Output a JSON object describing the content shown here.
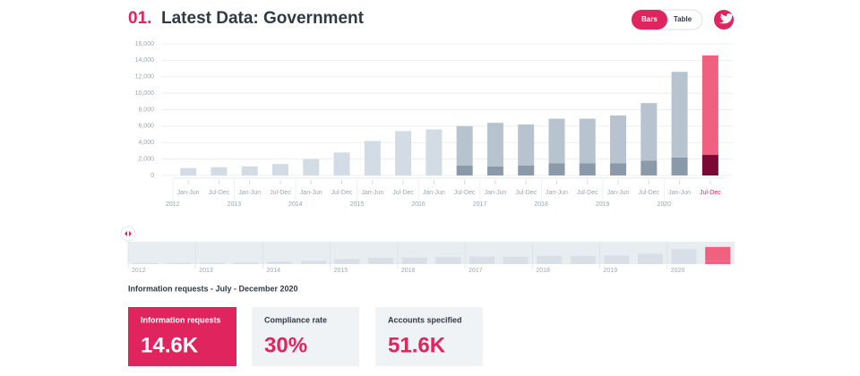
{
  "header": {
    "number": "01.",
    "title": "Latest Data: Government",
    "toggle": [
      "Bars",
      "Table"
    ]
  },
  "chart_data": {
    "type": "stacked-bar",
    "categories": [
      "Jan-Jun",
      "Jul-Dec",
      "Jan-Jun",
      "Jul-Dec",
      "Jan-Jun",
      "Jul-Dec",
      "Jan-Jun",
      "Jul-Dec",
      "Jan-Jun",
      "Jul-Dec",
      "Jan-Jun",
      "Jul-Dec",
      "Jan-Jun",
      "Jul-Dec",
      "Jan-Jun",
      "Jul-Dec",
      "Jan-Jun",
      "Jul-Dec"
    ],
    "years": [
      "2012",
      "2013",
      "2014",
      "2015",
      "2016",
      "2017",
      "2018",
      "2019",
      "2020"
    ],
    "series": [
      {
        "color": "#8a9aab",
        "highlight_color": "#7a0a35",
        "values": [
          null,
          null,
          null,
          null,
          null,
          null,
          null,
          null,
          null,
          1200,
          1100,
          1200,
          1500,
          1500,
          1500,
          1800,
          2200,
          2500
        ]
      },
      {
        "color": "#b7c3ce",
        "early_color": "#d3dce4",
        "highlight_color": "#f0607f",
        "values": [
          900,
          1000,
          1100,
          1400,
          2000,
          2800,
          4200,
          5400,
          5600,
          4800,
          5300,
          5000,
          5400,
          5400,
          5800,
          7000,
          10400,
          12100
        ]
      }
    ],
    "highlight_index": 17,
    "early_count": 9,
    "ylim": [
      0,
      16000
    ],
    "yticks": [
      0,
      {
        "value": 2000,
        "label": "2,000"
      },
      {
        "value": 4000,
        "label": "4,000"
      },
      {
        "value": 6000,
        "label": "6,000"
      },
      {
        "value": 8000,
        "label": "8,000"
      },
      {
        "value": 10000,
        "label": "10,000"
      },
      {
        "value": 12000,
        "label": "12,000"
      },
      {
        "value": 14000,
        "label": "14,000"
      },
      {
        "value": 16000,
        "label": "16,000"
      }
    ],
    "grid": true
  },
  "summary": {
    "heading": "Information requests - July - December 2020",
    "cards": [
      {
        "label": "Information requests",
        "value": "14.6K"
      },
      {
        "label": "Compliance rate",
        "value": "30%"
      },
      {
        "label": "Accounts specified",
        "value": "51.6K"
      }
    ]
  }
}
